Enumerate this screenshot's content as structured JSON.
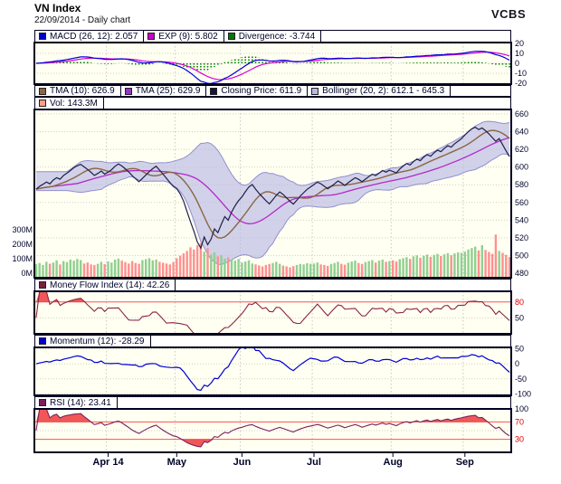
{
  "header": {
    "title": "VN Index",
    "subtitle": "22/09/2014 - Daily chart",
    "brand": "VCBS"
  },
  "legends": {
    "macd": [
      {
        "label": "MACD (26, 12): 2.057",
        "color": "#0000cc"
      },
      {
        "label": "EXP (9): 5.802",
        "color": "#cc00cc"
      },
      {
        "label": "Divergence: -3.744",
        "color": "#007a00"
      }
    ],
    "price": [
      {
        "label": "TMA (10): 626.9",
        "color": "#8a6642"
      },
      {
        "label": "TMA (25): 629.9",
        "color": "#9932cc"
      },
      {
        "label": "Closing Price: 611.9",
        "color": "#15153c"
      },
      {
        "label": "Bollinger (20, 2): 612.1 - 645.3",
        "color": "#b8b8e4"
      }
    ],
    "vol": [
      {
        "label": "Vol: 143.3M",
        "color": "#ff9d8a"
      }
    ],
    "mfi": [
      {
        "label": "Money Flow Index (14): 42.26",
        "color": "#7a1f3d"
      }
    ],
    "momentum": [
      {
        "label": "Momentum (12): -28.29",
        "color": "#0000cc"
      }
    ],
    "rsi": [
      {
        "label": "RSI (14): 23.41",
        "color": "#7a1f5a"
      }
    ]
  },
  "colors": {
    "panel_bg": "#fffff2",
    "border": "#000020",
    "grid": "#d2d2c2",
    "label": "#000428",
    "red_label": "#dd0000",
    "red_line": "#ff5050",
    "red_fill": "#f04545",
    "close": "#20204a",
    "tma10": "#8a6642",
    "tma25": "#b428c8",
    "bollinger_fill": "#b8b8e4",
    "bollinger_edge": "#9090d0",
    "vol_up": "#90d090",
    "vol_down": "#ff9090",
    "macd": "#0000d8",
    "macd_signal": "#d800d8",
    "divergence": "#007e00",
    "mfi": "#8a2446",
    "momentum": "#0000d8",
    "rsi": "#7a2060"
  },
  "chart_data": {
    "type": "line",
    "title": "VN Index",
    "subtitle": "22/09/2014 - Daily chart",
    "x_months": [
      {
        "label": "Apr 14",
        "start_index": 21
      },
      {
        "label": "May",
        "start_index": 41
      },
      {
        "label": "Jun",
        "start_index": 60
      },
      {
        "label": "Jul",
        "start_index": 81
      },
      {
        "label": "Aug",
        "start_index": 104
      },
      {
        "label": "Sep",
        "start_index": 125
      }
    ],
    "close": [
      575.0,
      578.2,
      580.5,
      583.1,
      581.0,
      585.3,
      588.0,
      586.2,
      590.4,
      593.1,
      596.0,
      599.2,
      601.5,
      603.0,
      600.1,
      597.3,
      594.0,
      590.5,
      592.8,
      595.5,
      592.0,
      594.3,
      597.0,
      600.8,
      603.5,
      601.2,
      598.0,
      594.5,
      590.2,
      586.8,
      583.5,
      587.2,
      591.0,
      594.8,
      598.2,
      601.0,
      596.5,
      592.0,
      587.3,
      582.5,
      578.0,
      575.5,
      569.8,
      561.5,
      549.7,
      538.2,
      527.5,
      515.3,
      508.5,
      521.0,
      512.3,
      518.6,
      530.2,
      526.0,
      535.4,
      544.1,
      540.0,
      549.3,
      556.2,
      562.0,
      566.3,
      572.1,
      577.5,
      580.2,
      575.0,
      570.3,
      566.1,
      562.0,
      558.4,
      563.2,
      568.0,
      571.8,
      569.0,
      565.2,
      561.3,
      558.0,
      562.4,
      567.1,
      571.0,
      574.8,
      577.6,
      580.2,
      583.0,
      581.1,
      578.3,
      575.4,
      578.2,
      581.0,
      584.3,
      582.0,
      579.2,
      582.4,
      585.2,
      588.0,
      586.1,
      583.4,
      586.3,
      589.2,
      592.0,
      590.3,
      593.1,
      596.0,
      594.2,
      596.5,
      595.0,
      593.4,
      597.8,
      601.2,
      604.0,
      602.3,
      606.1,
      609.0,
      607.2,
      611.3,
      614.0,
      612.2,
      616.1,
      619.0,
      617.3,
      621.2,
      624.0,
      622.4,
      626.3,
      629.1,
      632.0,
      636.2,
      640.0,
      643.1,
      645.0,
      642.3,
      644.2,
      641.0,
      637.4,
      633.2,
      629.0,
      632.1,
      625.3,
      618.2,
      611.9
    ],
    "volume_millions": [
      95,
      102,
      88,
      110,
      97,
      105,
      120,
      92,
      115,
      108,
      125,
      118,
      130,
      122,
      98,
      105,
      92,
      88,
      96,
      110,
      94,
      112,
      105,
      125,
      132,
      118,
      108,
      98,
      115,
      102,
      96,
      122,
      128,
      135,
      120,
      126,
      110,
      104,
      98,
      92,
      108,
      135,
      152,
      168,
      185,
      210,
      195,
      225,
      240,
      180,
      205,
      160,
      175,
      148,
      155,
      132,
      140,
      125,
      118,
      130,
      105,
      112,
      120,
      98,
      92,
      85,
      78,
      88,
      95,
      102,
      110,
      96,
      84,
      78,
      72,
      80,
      88,
      95,
      92,
      100,
      96,
      98,
      105,
      92,
      88,
      82,
      95,
      102,
      110,
      96,
      90,
      104,
      112,
      118,
      102,
      95,
      108,
      115,
      122,
      105,
      118,
      125,
      110,
      115,
      120,
      112,
      128,
      135,
      142,
      130,
      148,
      155,
      138,
      152,
      160,
      145,
      158,
      165,
      150,
      162,
      170,
      155,
      168,
      175,
      172,
      180,
      195,
      205,
      215,
      188,
      225,
      192,
      178,
      165,
      298,
      185,
      172,
      158,
      143.3
    ],
    "latest": {
      "close": 611.9,
      "tma10": 626.9,
      "tma25": 629.9,
      "bollinger_lower": 612.1,
      "bollinger_upper": 645.3,
      "volume_m": 143.3,
      "macd": 2.057,
      "macd_signal": 5.802,
      "macd_divergence": -3.744,
      "mfi14": 42.26,
      "momentum12": -28.29,
      "rsi14": 23.41
    },
    "panels": {
      "macd": {
        "range": [
          -21,
          21
        ],
        "ticks": [
          20,
          10,
          0,
          -10,
          -20
        ]
      },
      "price": {
        "range": [
          475,
          665
        ],
        "ticks": [
          660,
          640,
          620,
          600,
          580,
          560,
          540,
          520,
          500,
          480
        ]
      },
      "volume": {
        "values": [
          300,
          200,
          100,
          0
        ],
        "ticks": [
          "300M",
          "200M",
          "100M",
          "0M"
        ]
      },
      "mfi": {
        "range": [
          20,
          100
        ],
        "ticks": [
          {
            "v": 80,
            "red": true
          },
          {
            "v": 50,
            "red": false
          }
        ],
        "red_lines": [
          80
        ]
      },
      "momentum": {
        "range": [
          -105,
          55
        ],
        "ticks": [
          50,
          0,
          -50,
          -100
        ]
      },
      "rsi": {
        "range": [
          0,
          100
        ],
        "ticks": [
          {
            "v": 100,
            "red": false
          },
          {
            "v": 70,
            "red": true
          },
          {
            "v": 30,
            "red": true
          }
        ],
        "red_lines": [
          70,
          30
        ]
      }
    }
  }
}
